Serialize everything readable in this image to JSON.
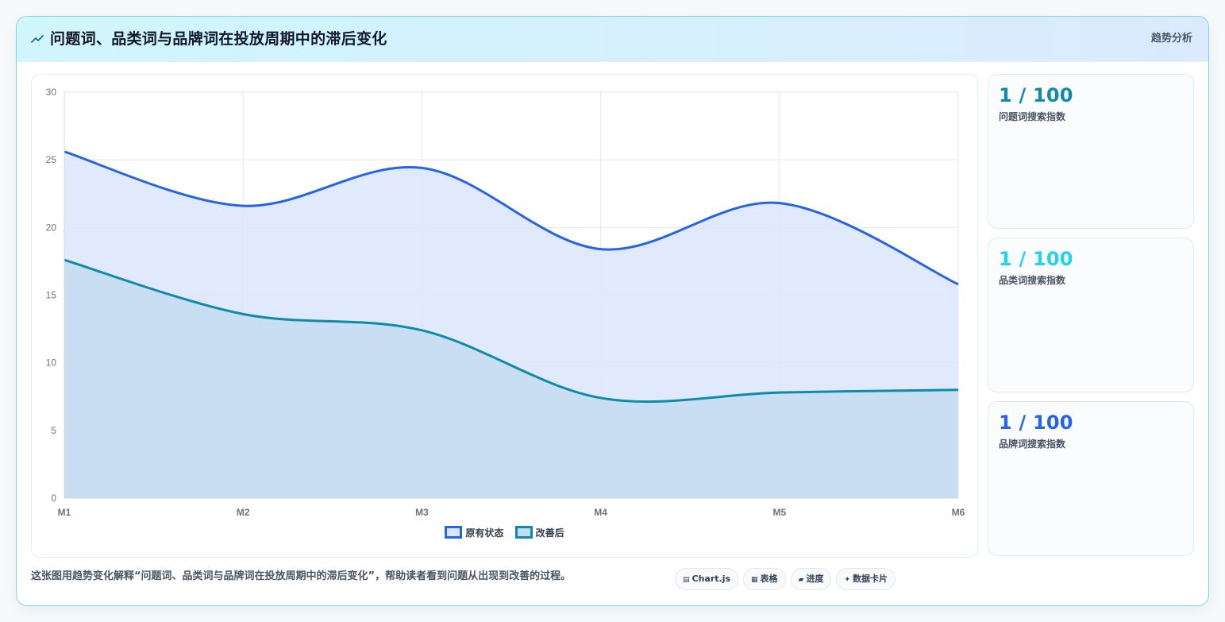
{
  "header": {
    "title": "问题词、品类词与品牌词在投放周期中的滞后变化",
    "tag": "趋势分析",
    "icon": "trend-icon"
  },
  "chart_data": {
    "type": "area",
    "categories": [
      "M1",
      "M2",
      "M3",
      "M4",
      "M5",
      "M6"
    ],
    "ylim": [
      0,
      30
    ],
    "yticks": [
      0,
      5,
      10,
      15,
      20,
      25,
      30
    ],
    "grid": true,
    "legend_position": "bottom-center",
    "series": [
      {
        "name": "原有状态",
        "values": [
          25.6,
          21.6,
          24.4,
          18.4,
          21.8,
          15.8
        ],
        "color": "#2563eb",
        "fill": "#dbe6fb"
      },
      {
        "name": "改善后",
        "values": [
          17.6,
          13.6,
          12.4,
          7.4,
          7.8,
          8.0
        ],
        "color": "#0e8aab",
        "fill": "#c4dcf1"
      }
    ]
  },
  "stats": [
    {
      "value": "1 / 100",
      "label": "问题词搜索指数",
      "color": "#0e8aab"
    },
    {
      "value": "1 / 100",
      "label": "品类词搜索指数",
      "color": "#22d3ee"
    },
    {
      "value": "1 / 100",
      "label": "品牌词搜索指数",
      "color": "#2563eb"
    }
  ],
  "footer": {
    "note": "这张图用趋势变化解释“问题词、品类词与品牌词在投放周期中的滞后变化”，帮助读者看到问题从出现到改善的过程。",
    "pills": [
      {
        "icon": "▤",
        "label": "Chart.js",
        "icon_name": "chart-icon"
      },
      {
        "icon": "▦",
        "label": "表格",
        "icon_name": "table-icon"
      },
      {
        "icon": "▰",
        "label": "进度",
        "icon_name": "progress-icon"
      },
      {
        "icon": "✦",
        "label": "数据卡片",
        "icon_name": "sparkle-icon"
      }
    ]
  }
}
